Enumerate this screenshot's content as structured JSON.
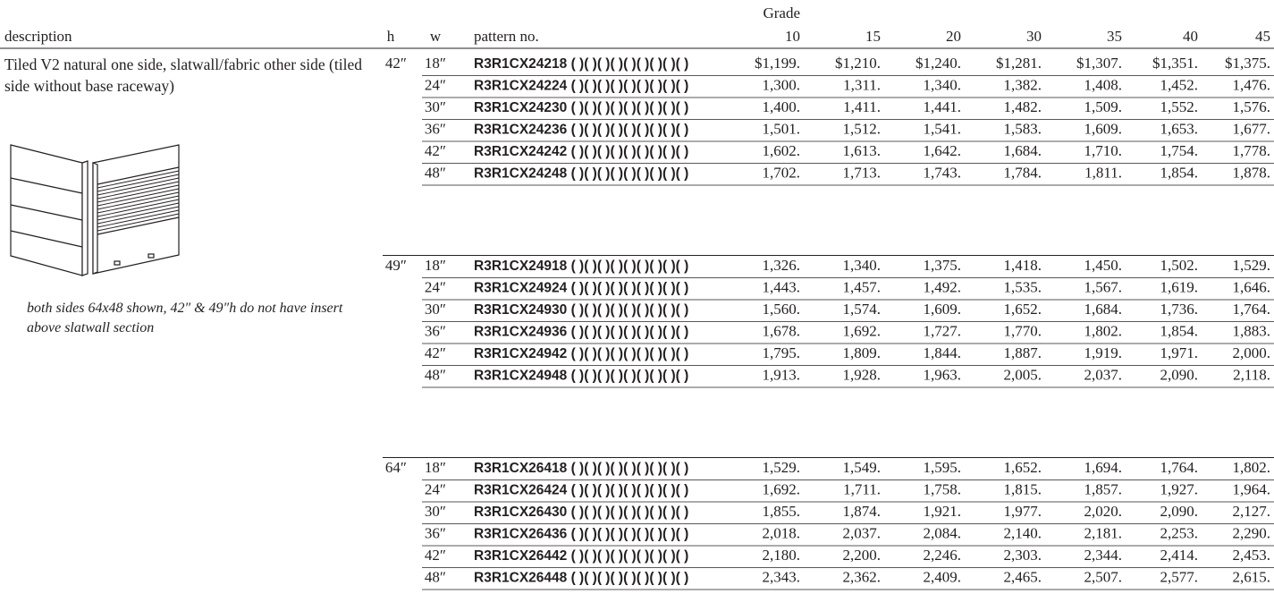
{
  "header": {
    "description": "description",
    "h": "h",
    "w": "w",
    "pattern": "pattern no.",
    "grade_label": "Grade",
    "grades": [
      "10",
      "15",
      "20",
      "30",
      "35",
      "40",
      "45"
    ]
  },
  "description": {
    "text": "Tiled V2 natural one side, slatwall/fabric other side (tiled side without base raceway)",
    "note": "both sides 64x48 shown, 42″ & 49″h do not have insert above slatwall section"
  },
  "groups": [
    {
      "h": "42″",
      "rows": [
        {
          "w": "18″",
          "pattern": "R3R1CX24218 ( )( )( )( )( )( )( )( )( )",
          "prices": [
            "$1,199.",
            "$1,210.",
            "$1,240.",
            "$1,281.",
            "$1,307.",
            "$1,351.",
            "$1,375."
          ]
        },
        {
          "w": "24″",
          "pattern": "R3R1CX24224 ( )( )( )( )( )( )( )( )( )",
          "prices": [
            "1,300.",
            "1,311.",
            "1,340.",
            "1,382.",
            "1,408.",
            "1,452.",
            "1,476."
          ]
        },
        {
          "w": "30″",
          "pattern": "R3R1CX24230 ( )( )( )( )( )( )( )( )( )",
          "prices": [
            "1,400.",
            "1,411.",
            "1,441.",
            "1,482.",
            "1,509.",
            "1,552.",
            "1,576."
          ]
        },
        {
          "w": "36″",
          "pattern": "R3R1CX24236 ( )( )( )( )( )( )( )( )( )",
          "prices": [
            "1,501.",
            "1,512.",
            "1,541.",
            "1,583.",
            "1,609.",
            "1,653.",
            "1,677."
          ]
        },
        {
          "w": "42″",
          "pattern": "R3R1CX24242 ( )( )( )( )( )( )( )( )( )",
          "prices": [
            "1,602.",
            "1,613.",
            "1,642.",
            "1,684.",
            "1,710.",
            "1,754.",
            "1,778."
          ]
        },
        {
          "w": "48″",
          "pattern": "R3R1CX24248 ( )( )( )( )( )( )( )( )( )",
          "prices": [
            "1,702.",
            "1,713.",
            "1,743.",
            "1,784.",
            "1,811.",
            "1,854.",
            "1,878."
          ]
        }
      ]
    },
    {
      "h": "49″",
      "rows": [
        {
          "w": "18″",
          "pattern": "R3R1CX24918 ( )( )( )( )( )( )( )( )( )",
          "prices": [
            "1,326.",
            "1,340.",
            "1,375.",
            "1,418.",
            "1,450.",
            "1,502.",
            "1,529."
          ]
        },
        {
          "w": "24″",
          "pattern": "R3R1CX24924 ( )( )( )( )( )( )( )( )( )",
          "prices": [
            "1,443.",
            "1,457.",
            "1,492.",
            "1,535.",
            "1,567.",
            "1,619.",
            "1,646."
          ]
        },
        {
          "w": "30″",
          "pattern": "R3R1CX24930 ( )( )( )( )( )( )( )( )( )",
          "prices": [
            "1,560.",
            "1,574.",
            "1,609.",
            "1,652.",
            "1,684.",
            "1,736.",
            "1,764."
          ]
        },
        {
          "w": "36″",
          "pattern": "R3R1CX24936 ( )( )( )( )( )( )( )( )( )",
          "prices": [
            "1,678.",
            "1,692.",
            "1,727.",
            "1,770.",
            "1,802.",
            "1,854.",
            "1,883."
          ]
        },
        {
          "w": "42″",
          "pattern": "R3R1CX24942 ( )( )( )( )( )( )( )( )( )",
          "prices": [
            "1,795.",
            "1,809.",
            "1,844.",
            "1,887.",
            "1,919.",
            "1,971.",
            "2,000."
          ]
        },
        {
          "w": "48″",
          "pattern": "R3R1CX24948 ( )( )( )( )( )( )( )( )( )",
          "prices": [
            "1,913.",
            "1,928.",
            "1,963.",
            "2,005.",
            "2,037.",
            "2,090.",
            "2,118."
          ]
        }
      ]
    },
    {
      "h": "64″",
      "rows": [
        {
          "w": "18″",
          "pattern": "R3R1CX26418 ( )( )( )( )( )( )( )( )( )",
          "prices": [
            "1,529.",
            "1,549.",
            "1,595.",
            "1,652.",
            "1,694.",
            "1,764.",
            "1,802."
          ]
        },
        {
          "w": "24″",
          "pattern": "R3R1CX26424 ( )( )( )( )( )( )( )( )( )",
          "prices": [
            "1,692.",
            "1,711.",
            "1,758.",
            "1,815.",
            "1,857.",
            "1,927.",
            "1,964."
          ]
        },
        {
          "w": "30″",
          "pattern": "R3R1CX26430 ( )( )( )( )( )( )( )( )( )",
          "prices": [
            "1,855.",
            "1,874.",
            "1,921.",
            "1,977.",
            "2,020.",
            "2,090.",
            "2,127."
          ]
        },
        {
          "w": "36″",
          "pattern": "R3R1CX26436 ( )( )( )( )( )( )( )( )( )",
          "prices": [
            "2,018.",
            "2,037.",
            "2,084.",
            "2,140.",
            "2,181.",
            "2,253.",
            "2,290."
          ]
        },
        {
          "w": "42″",
          "pattern": "R3R1CX26442 ( )( )( )( )( )( )( )( )( )",
          "prices": [
            "2,180.",
            "2,200.",
            "2,246.",
            "2,303.",
            "2,344.",
            "2,414.",
            "2,453."
          ]
        },
        {
          "w": "48″",
          "pattern": "R3R1CX26448 ( )( )( )( )( )( )( )( )( )",
          "prices": [
            "2,343.",
            "2,362.",
            "2,409.",
            "2,465.",
            "2,507.",
            "2,577.",
            "2,615."
          ]
        }
      ]
    }
  ]
}
